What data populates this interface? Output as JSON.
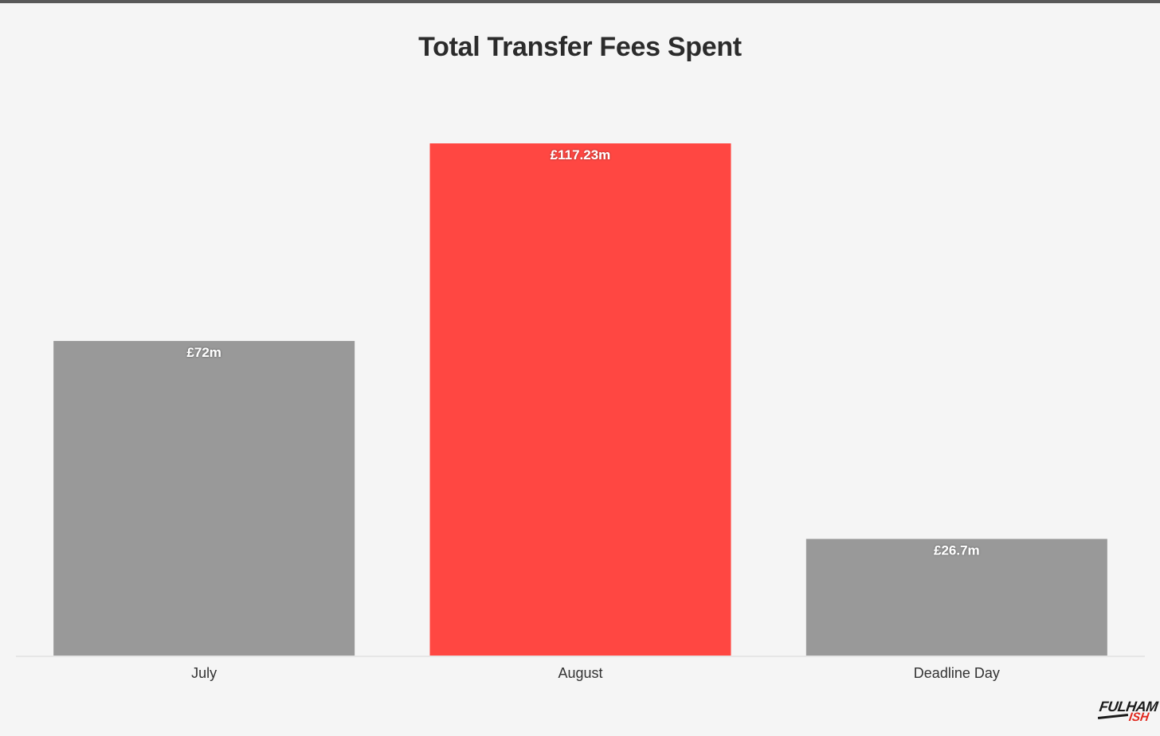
{
  "chart_data": {
    "type": "bar",
    "title": "Total Transfer Fees Spent",
    "xlabel": "",
    "ylabel": "",
    "categories": [
      "July",
      "August",
      "Deadline Day"
    ],
    "values": [
      72,
      117.23,
      26.7
    ],
    "value_labels": [
      "£72m",
      "£117.23m",
      "£26.7m"
    ],
    "unit": "£m",
    "highlight_index": 1,
    "ylim": [
      0,
      117.23
    ],
    "grid": false,
    "colors": {
      "default_bar": "#999999",
      "highlight_bar": "#ff4742",
      "title": "#2b2b2b",
      "tick_label": "#333333",
      "baseline": "#e6e6e6"
    }
  },
  "logo": {
    "line1": "FULHAM",
    "line2": "ISH"
  }
}
